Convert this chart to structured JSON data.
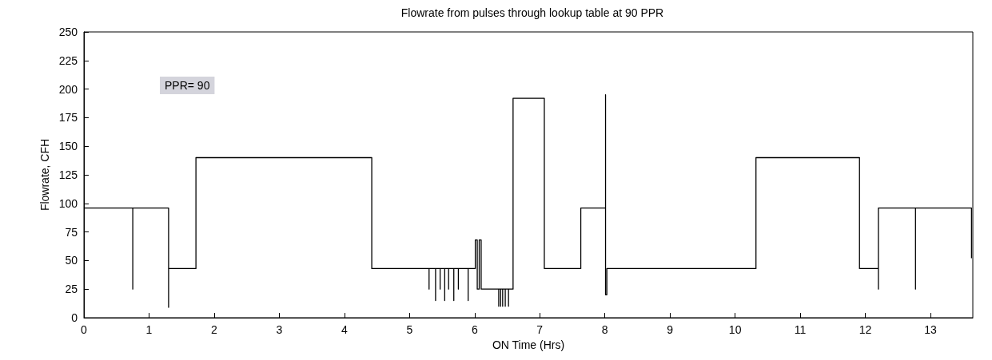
{
  "chart_data": {
    "type": "line",
    "title": "Flowrate from pulses through lookup table at 90 PPR",
    "xlabel": "ON Time (Hrs)",
    "ylabel": "Flowrate, CFH",
    "annotations": [
      "PPR= 90"
    ],
    "x": [
      0,
      0.75,
      0.75,
      0.75,
      1.3,
      1.3,
      1.3,
      1.72,
      1.72,
      4.42,
      4.42,
      5.3,
      5.3,
      5.3,
      5.4,
      5.4,
      5.4,
      5.47,
      5.47,
      5.47,
      5.54,
      5.54,
      5.54,
      5.6,
      5.6,
      5.6,
      5.68,
      5.68,
      5.68,
      5.75,
      5.75,
      5.75,
      5.9,
      5.9,
      5.9,
      6.01,
      6.01,
      6.04,
      6.04,
      6.07,
      6.07,
      6.1,
      6.1,
      6.37,
      6.37,
      6.37,
      6.4,
      6.4,
      6.4,
      6.43,
      6.43,
      6.43,
      6.47,
      6.47,
      6.47,
      6.52,
      6.52,
      6.52,
      6.59,
      6.59,
      7.07,
      7.07,
      7.63,
      7.63,
      8.01,
      8.01,
      8.01,
      8.03,
      8.03,
      10.32,
      10.32,
      11.91,
      11.91,
      12.2,
      12.2,
      12.2,
      12.77,
      12.77,
      12.77,
      13.63,
      13.63
    ],
    "values": [
      96,
      96,
      25,
      96,
      96,
      9,
      43,
      43,
      140,
      140,
      43,
      43,
      25,
      43,
      43,
      15,
      43,
      43,
      25,
      43,
      43,
      15,
      43,
      43,
      25,
      43,
      43,
      15,
      43,
      43,
      25,
      43,
      43,
      15,
      43,
      43,
      68,
      68,
      25,
      25,
      68,
      68,
      25,
      25,
      10,
      25,
      25,
      10,
      25,
      25,
      10,
      25,
      25,
      10,
      25,
      25,
      10,
      25,
      25,
      192,
      192,
      43,
      43,
      96,
      96,
      195,
      20,
      20,
      43,
      43,
      140,
      140,
      43,
      43,
      25,
      96,
      96,
      25,
      96,
      96,
      52
    ],
    "color": "#000000",
    "marker": "none",
    "line_style": "solid",
    "grid": false,
    "xlim": [
      0,
      13.65
    ],
    "xticks": [
      0,
      1,
      2,
      3,
      4,
      5,
      6,
      7,
      8,
      9,
      10,
      11,
      12,
      13
    ],
    "ylim": [
      0,
      250
    ],
    "yticks": [
      0,
      25,
      50,
      75,
      100,
      125,
      150,
      175,
      200,
      225,
      250
    ]
  }
}
